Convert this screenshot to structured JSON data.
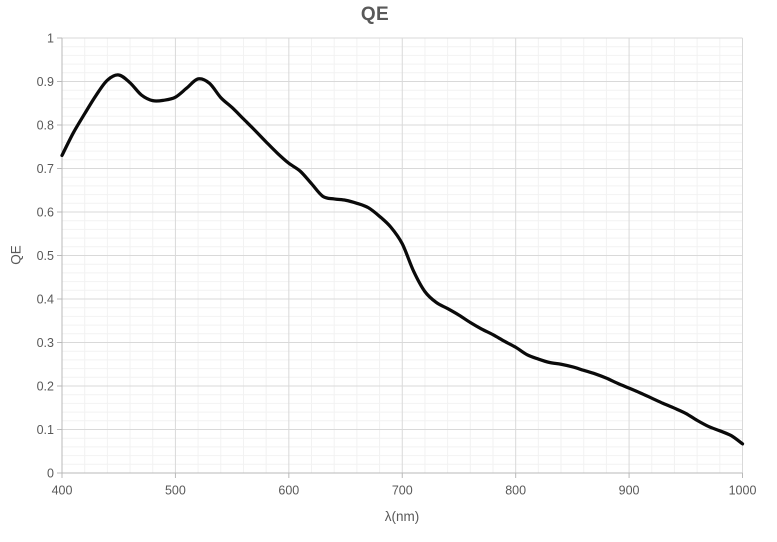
{
  "chart_data": {
    "type": "line",
    "title": "QE",
    "xlabel": "λ(nm)",
    "ylabel": "QE",
    "xlim": [
      400,
      1000
    ],
    "ylim": [
      0,
      1
    ],
    "x_major_step": 100,
    "x_minor_step": 20,
    "y_major_step": 0.1,
    "y_minor_step": 0.02,
    "grid": "major+minor",
    "legend_position": "none",
    "line_smoothing": true,
    "series": [
      {
        "name": "QE",
        "x": [
          400,
          410,
          420,
          430,
          440,
          450,
          460,
          470,
          480,
          490,
          500,
          510,
          520,
          530,
          540,
          550,
          560,
          570,
          580,
          590,
          600,
          610,
          620,
          630,
          640,
          650,
          660,
          670,
          680,
          690,
          700,
          710,
          720,
          730,
          740,
          750,
          760,
          770,
          780,
          790,
          800,
          810,
          820,
          830,
          840,
          850,
          860,
          870,
          880,
          890,
          900,
          910,
          920,
          930,
          940,
          950,
          960,
          970,
          980,
          990,
          1000
        ],
        "y": [
          0.73,
          0.782,
          0.826,
          0.868,
          0.903,
          0.915,
          0.897,
          0.869,
          0.856,
          0.857,
          0.864,
          0.885,
          0.906,
          0.896,
          0.863,
          0.84,
          0.814,
          0.788,
          0.761,
          0.735,
          0.712,
          0.694,
          0.665,
          0.636,
          0.63,
          0.627,
          0.62,
          0.61,
          0.59,
          0.565,
          0.527,
          0.464,
          0.417,
          0.392,
          0.378,
          0.363,
          0.346,
          0.331,
          0.318,
          0.303,
          0.289,
          0.272,
          0.262,
          0.254,
          0.25,
          0.244,
          0.236,
          0.228,
          0.218,
          0.206,
          0.195,
          0.184,
          0.172,
          0.16,
          0.149,
          0.137,
          0.121,
          0.107,
          0.097,
          0.086,
          0.067
        ]
      }
    ]
  },
  "colors": {
    "background": "#ffffff",
    "title_text": "#595959",
    "axis_title_text": "#595959",
    "tick_label_text": "#595959",
    "axis_line": "#b9b9b9",
    "tick_mark": "#b9b9b9",
    "major_gridline": "#d9d9d9",
    "minor_gridline": "#f2f2f2",
    "series_line": "#0a0a0a"
  }
}
